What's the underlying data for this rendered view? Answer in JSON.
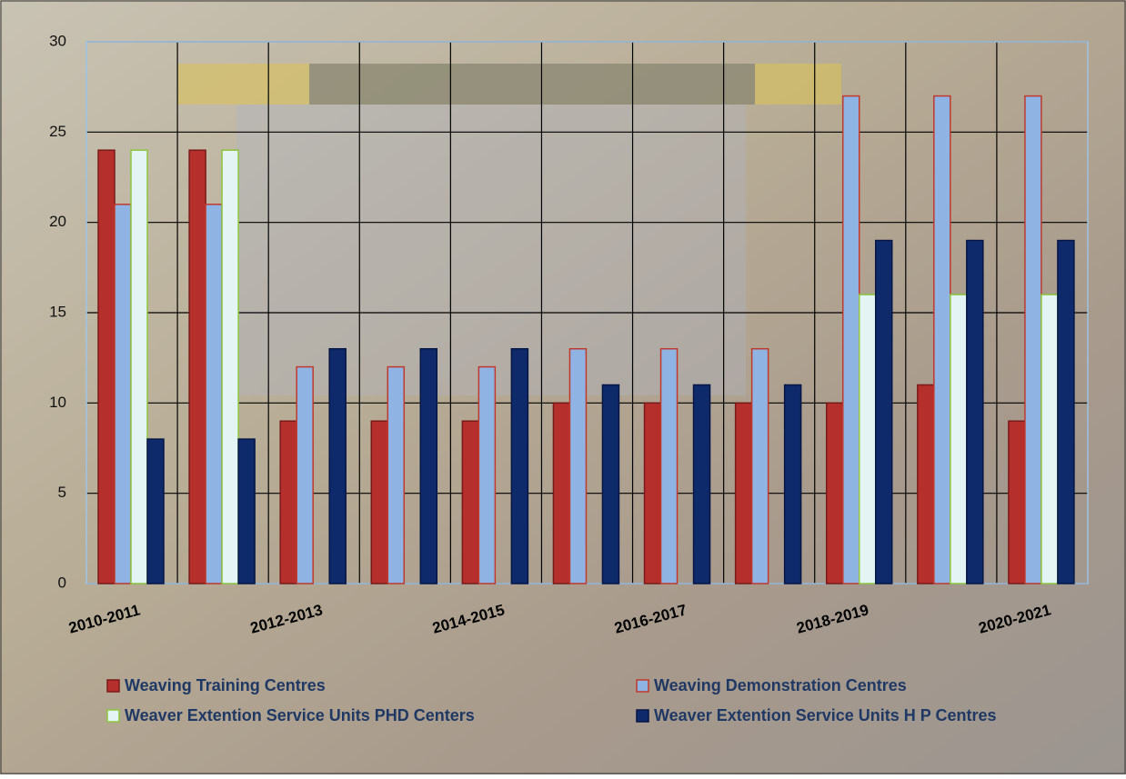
{
  "chart_data": {
    "type": "bar",
    "categories": [
      "2010-2011",
      null,
      "2012-2013",
      null,
      "2014-2015",
      null,
      "2016-2017",
      null,
      "2018-2019",
      null,
      "2020-2021"
    ],
    "series": [
      {
        "name": "Weaving Training Centres",
        "color": "#b5302c",
        "stroke": "#7a1a18",
        "values": [
          24,
          24,
          9,
          9,
          9,
          10,
          10,
          10,
          10,
          11,
          9
        ]
      },
      {
        "name": "Weaving Demonstration Centres",
        "color": "#8fb4e3",
        "stroke": "#c0392b",
        "values": [
          21,
          21,
          12,
          12,
          12,
          13,
          13,
          13,
          27,
          27,
          27
        ]
      },
      {
        "name": "Weaver Extention Service Units PHD Centers",
        "color": "#e4f4f4",
        "stroke": "#8cc63e",
        "values": [
          24,
          24,
          0,
          0,
          0,
          0,
          0,
          0,
          16,
          16,
          16
        ]
      },
      {
        "name": "Weaver Extention Service Units H P Centres",
        "color": "#0f2a6b",
        "stroke": "#061644",
        "values": [
          8,
          8,
          13,
          13,
          13,
          11,
          11,
          11,
          19,
          19,
          19
        ]
      }
    ],
    "ylim": [
      0,
      30
    ],
    "yticks": [
      0,
      5,
      10,
      15,
      20,
      25,
      30
    ],
    "grid": true
  }
}
